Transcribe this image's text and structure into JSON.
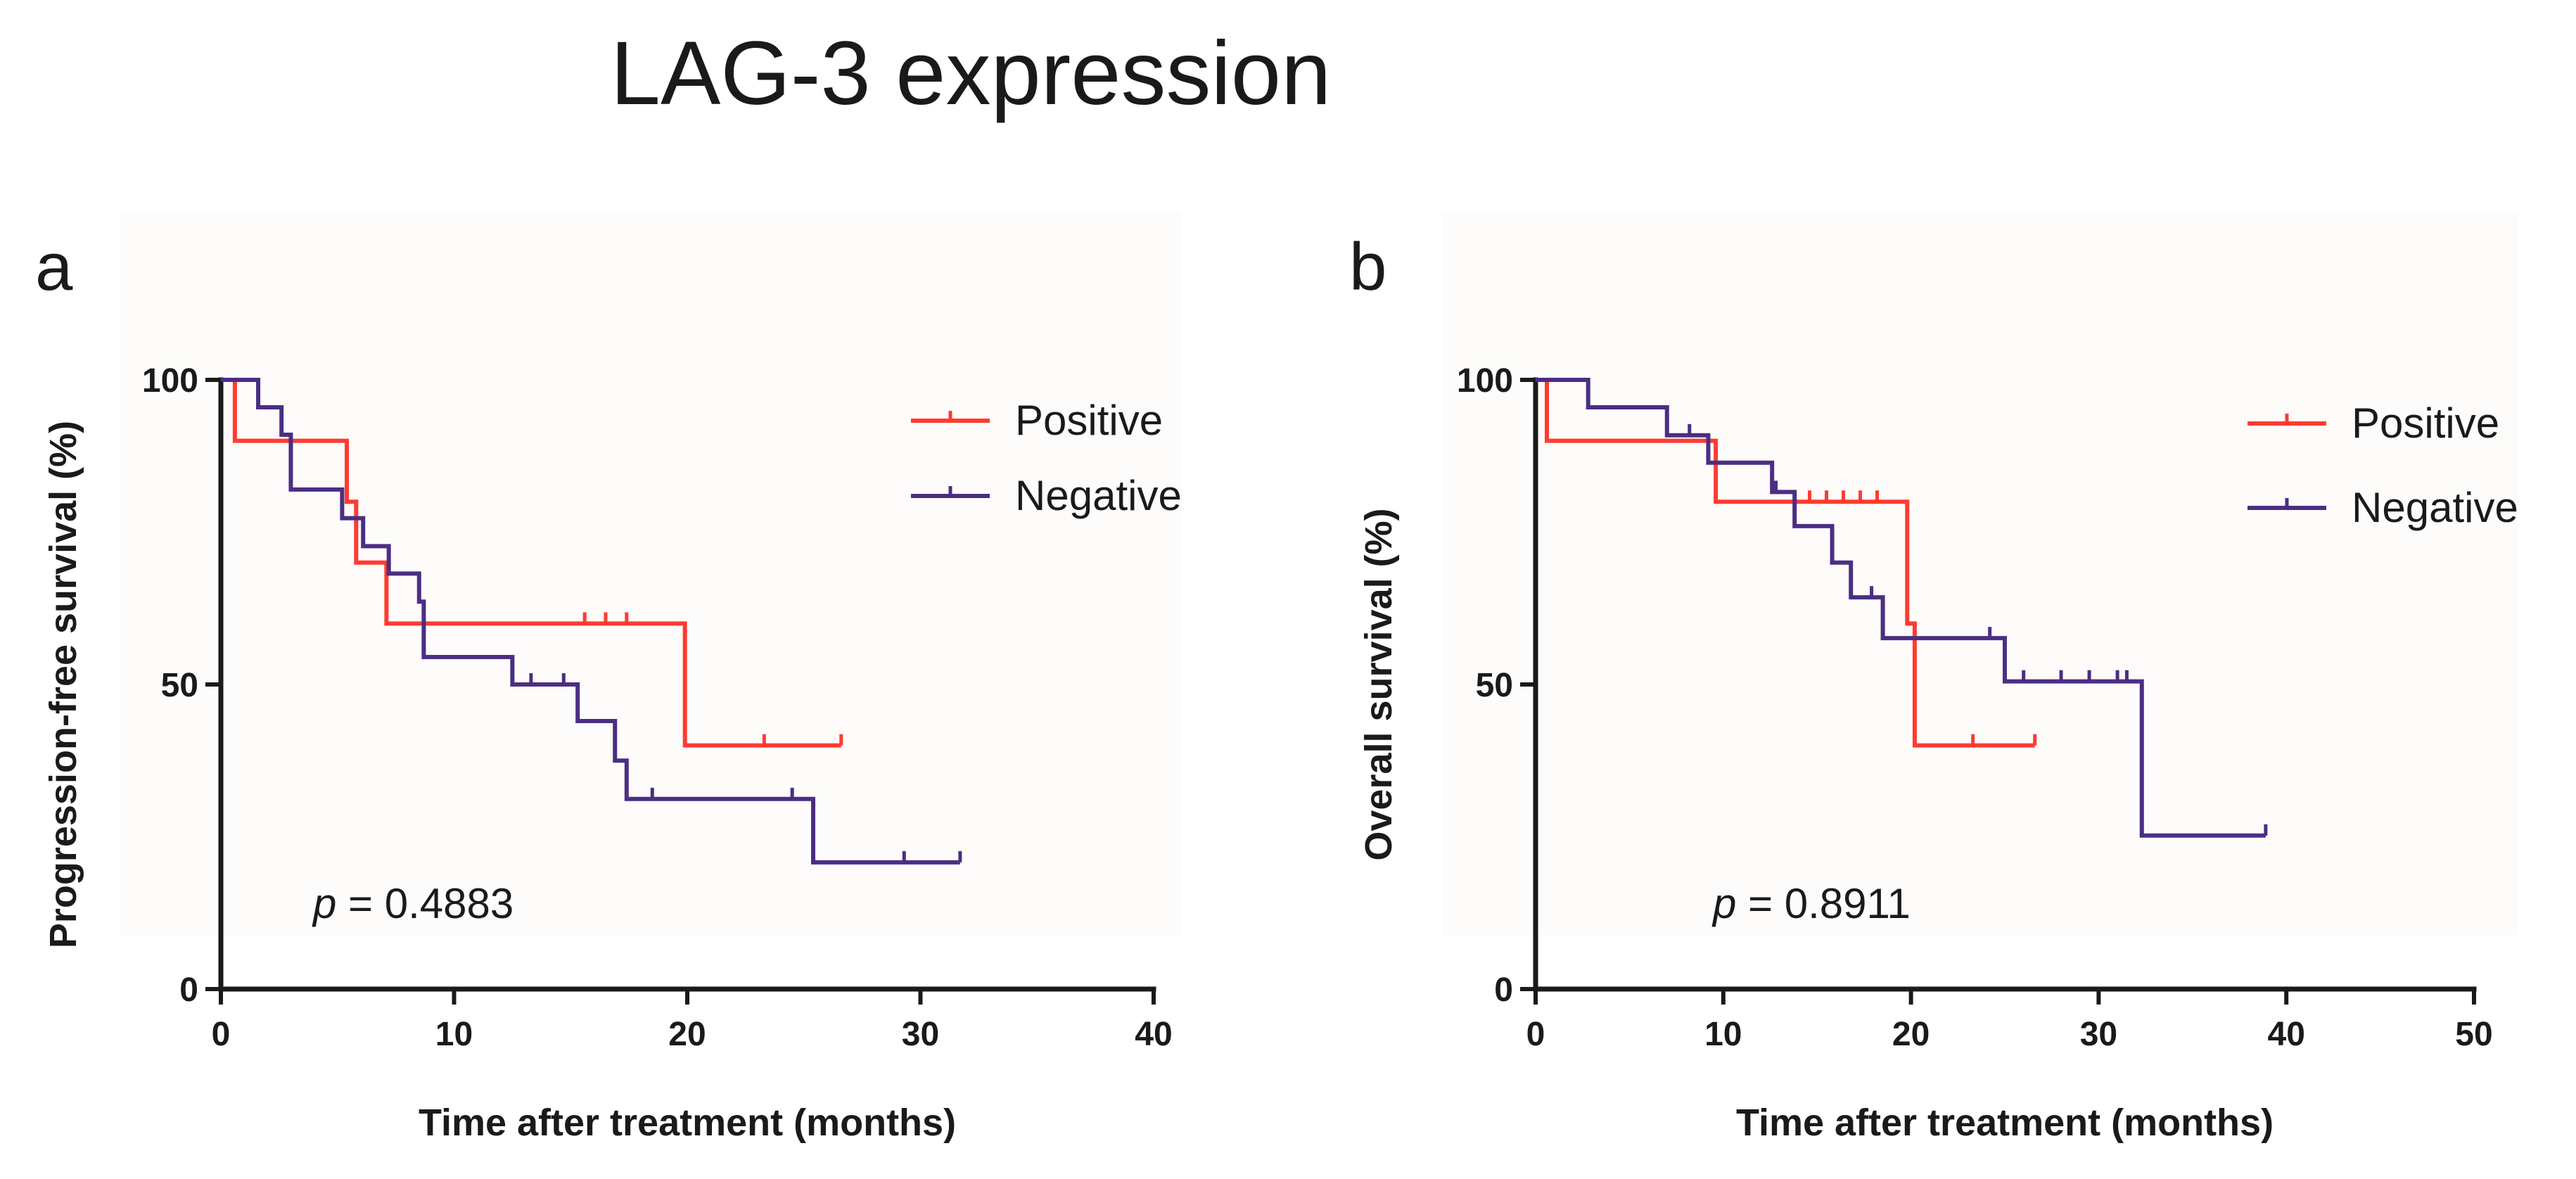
{
  "figure": {
    "title": "LAG-3 expression",
    "colors": {
      "positive": "#ff3b30",
      "negative": "#4b2e83"
    }
  },
  "chart_data": [
    {
      "type": "line",
      "subtype": "kaplan-meier",
      "panel": "a",
      "title": "",
      "xlabel": "Time after treatment (months)",
      "ylabel": "Progression-free survival (%)",
      "xlim": [
        0,
        40
      ],
      "ylim": [
        0,
        100
      ],
      "xticks": [
        0,
        10,
        20,
        30,
        40
      ],
      "yticks": [
        0,
        50,
        100
      ],
      "legend": {
        "position": "top-right",
        "entries": [
          "Positive",
          "Negative"
        ]
      },
      "annotation": {
        "p_symbol": "p",
        "p_text": "= 0.4883"
      },
      "series": [
        {
          "name": "Positive",
          "color": "#ff3b30",
          "steps": [
            [
              0,
              100
            ],
            [
              0.6,
              90
            ],
            [
              5.4,
              80
            ],
            [
              5.8,
              70
            ],
            [
              7.1,
              60
            ],
            [
              19.9,
              40
            ]
          ],
          "end": 26.6,
          "censored": [
            [
              15.6,
              60
            ],
            [
              16.5,
              60
            ],
            [
              17.4,
              60
            ],
            [
              23.3,
              40
            ],
            [
              26.6,
              40
            ]
          ]
        },
        {
          "name": "Negative",
          "color": "#4b2e83",
          "steps": [
            [
              0,
              100
            ],
            [
              1.6,
              95.5
            ],
            [
              2.6,
              91
            ],
            [
              3.0,
              82
            ],
            [
              5.2,
              77.3
            ],
            [
              6.1,
              72.7
            ],
            [
              7.2,
              68.2
            ],
            [
              8.5,
              63.6
            ],
            [
              8.7,
              54.5
            ],
            [
              12.5,
              50
            ],
            [
              15.3,
              44
            ],
            [
              16.9,
              37.5
            ],
            [
              17.4,
              31.2
            ],
            [
              25.4,
              20.8
            ]
          ],
          "end": 31.7,
          "censored": [
            [
              13.3,
              50
            ],
            [
              14.7,
              50
            ],
            [
              18.5,
              31.2
            ],
            [
              24.5,
              31.2
            ],
            [
              29.3,
              20.8
            ],
            [
              31.7,
              20.8
            ]
          ]
        }
      ]
    },
    {
      "type": "line",
      "subtype": "kaplan-meier",
      "panel": "b",
      "title": "",
      "xlabel": "Time after treatment (months)",
      "ylabel": "Overall survival (%)",
      "xlim": [
        0,
        50
      ],
      "ylim": [
        0,
        100
      ],
      "xticks": [
        0,
        10,
        20,
        30,
        40,
        50
      ],
      "yticks": [
        0,
        50,
        100
      ],
      "legend": {
        "position": "top-right",
        "entries": [
          "Positive",
          "Negative"
        ]
      },
      "annotation": {
        "p_symbol": "p",
        "p_text": "= 0.8911"
      },
      "series": [
        {
          "name": "Positive",
          "color": "#ff3b30",
          "steps": [
            [
              0,
              100
            ],
            [
              0.6,
              90
            ],
            [
              9.6,
              80
            ],
            [
              19.8,
              60
            ],
            [
              20.2,
              40
            ]
          ],
          "end": 26.6,
          "censored": [
            [
              14.6,
              80
            ],
            [
              15.5,
              80
            ],
            [
              16.4,
              80
            ],
            [
              17.3,
              80
            ],
            [
              18.2,
              80
            ],
            [
              23.3,
              40
            ],
            [
              26.6,
              40
            ]
          ]
        },
        {
          "name": "Negative",
          "color": "#4b2e83",
          "steps": [
            [
              0,
              100
            ],
            [
              2.8,
              95.5
            ],
            [
              7.0,
              90.9
            ],
            [
              9.2,
              86.4
            ],
            [
              12.6,
              81.6
            ],
            [
              13.8,
              76
            ],
            [
              15.8,
              70
            ],
            [
              16.8,
              64.3
            ],
            [
              18.5,
              57.6
            ],
            [
              25.0,
              50.5
            ],
            [
              32.3,
              25.2
            ]
          ],
          "end": 38.9,
          "censored": [
            [
              8.2,
              90.9
            ],
            [
              12.8,
              81.6
            ],
            [
              17.9,
              64.3
            ],
            [
              24.2,
              57.6
            ],
            [
              26.0,
              50.5
            ],
            [
              28.0,
              50.5
            ],
            [
              29.5,
              50.5
            ],
            [
              31.0,
              50.5
            ],
            [
              31.5,
              50.5
            ],
            [
              38.9,
              25.2
            ]
          ]
        }
      ]
    }
  ]
}
